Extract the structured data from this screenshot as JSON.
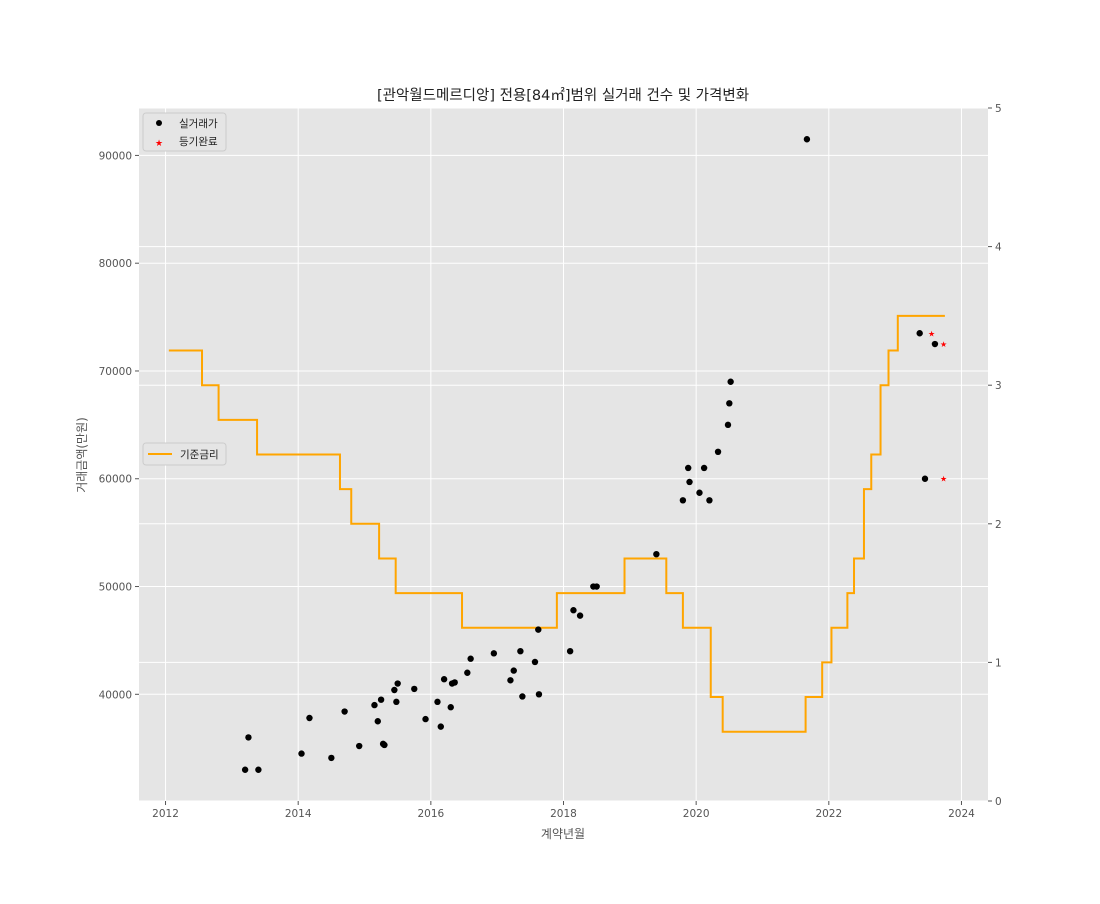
{
  "chart_data": {
    "type": "scatter",
    "title": "[관악월드메르디앙] 전용[84㎡]범위 실거래 건수 및 가격변화",
    "xlabel": "계약년월",
    "ylabel": "거래금액(만원)",
    "x_ticks": [
      "2012",
      "2014",
      "2016",
      "2018",
      "2020",
      "2022",
      "2024"
    ],
    "x_range": [
      2011.6,
      2024.4
    ],
    "y_ticks": [
      "40000",
      "50000",
      "60000",
      "70000",
      "80000",
      "90000"
    ],
    "y_range": [
      30100,
      94400
    ],
    "y2_ticks": [
      "0",
      "1",
      "2",
      "3",
      "4",
      "5"
    ],
    "y2_range": [
      0,
      5
    ],
    "grid": true,
    "legend_top": {
      "placement": "upper-left",
      "items": [
        "실거래가",
        "등기완료"
      ]
    },
    "legend_mid": {
      "placement": "center-left",
      "items": [
        "기준금리"
      ]
    },
    "colors": {
      "trade": "#000000",
      "registered": "#ff0000",
      "rate": "#ffa500",
      "plot_bg": "#e5e5e5",
      "grid": "#ffffff"
    },
    "series": [
      {
        "name": "실거래가",
        "marker": "circle",
        "points": [
          [
            2013.2,
            33000
          ],
          [
            2013.25,
            36000
          ],
          [
            2013.4,
            33000
          ],
          [
            2014.05,
            34500
          ],
          [
            2014.17,
            37800
          ],
          [
            2014.5,
            34100
          ],
          [
            2014.7,
            38400
          ],
          [
            2014.92,
            35200
          ],
          [
            2015.15,
            39000
          ],
          [
            2015.2,
            37500
          ],
          [
            2015.25,
            39500
          ],
          [
            2015.28,
            35400
          ],
          [
            2015.3,
            35300
          ],
          [
            2015.45,
            40400
          ],
          [
            2015.48,
            39300
          ],
          [
            2015.5,
            41000
          ],
          [
            2015.75,
            40500
          ],
          [
            2015.92,
            37700
          ],
          [
            2016.1,
            39300
          ],
          [
            2016.15,
            37000
          ],
          [
            2016.2,
            41400
          ],
          [
            2016.3,
            38800
          ],
          [
            2016.32,
            41000
          ],
          [
            2016.36,
            41100
          ],
          [
            2016.55,
            42000
          ],
          [
            2016.6,
            43300
          ],
          [
            2016.95,
            43800
          ],
          [
            2017.2,
            41300
          ],
          [
            2017.25,
            42200
          ],
          [
            2017.35,
            44000
          ],
          [
            2017.38,
            39800
          ],
          [
            2017.57,
            43000
          ],
          [
            2017.62,
            46000
          ],
          [
            2017.63,
            40000
          ],
          [
            2018.1,
            44000
          ],
          [
            2018.15,
            47800
          ],
          [
            2018.25,
            47300
          ],
          [
            2018.45,
            50000
          ],
          [
            2018.5,
            50000
          ],
          [
            2019.4,
            53000
          ],
          [
            2019.8,
            58000
          ],
          [
            2019.88,
            61000
          ],
          [
            2019.9,
            59700
          ],
          [
            2020.05,
            58700
          ],
          [
            2020.12,
            61000
          ],
          [
            2020.2,
            58000
          ],
          [
            2020.33,
            62500
          ],
          [
            2020.48,
            65000
          ],
          [
            2020.5,
            67000
          ],
          [
            2020.52,
            69000
          ],
          [
            2021.67,
            91500
          ],
          [
            2023.37,
            73500
          ],
          [
            2023.45,
            60000
          ],
          [
            2023.6,
            72500
          ]
        ]
      },
      {
        "name": "등기완료",
        "marker": "star",
        "points": [
          [
            2023.55,
            73500
          ],
          [
            2023.73,
            72500
          ],
          [
            2023.73,
            60000
          ]
        ]
      },
      {
        "name": "기준금리",
        "axis": "right",
        "step": true,
        "points": [
          [
            2012.05,
            3.25
          ],
          [
            2012.55,
            3.0
          ],
          [
            2012.8,
            2.75
          ],
          [
            2013.38,
            2.5
          ],
          [
            2014.63,
            2.25
          ],
          [
            2014.8,
            2.0
          ],
          [
            2015.22,
            1.75
          ],
          [
            2015.47,
            1.5
          ],
          [
            2016.47,
            1.25
          ],
          [
            2017.9,
            1.5
          ],
          [
            2018.92,
            1.75
          ],
          [
            2019.55,
            1.5
          ],
          [
            2019.8,
            1.25
          ],
          [
            2020.22,
            0.75
          ],
          [
            2020.4,
            0.5
          ],
          [
            2021.65,
            0.75
          ],
          [
            2021.9,
            1.0
          ],
          [
            2022.04,
            1.25
          ],
          [
            2022.28,
            1.5
          ],
          [
            2022.38,
            1.75
          ],
          [
            2022.53,
            2.25
          ],
          [
            2022.64,
            2.5
          ],
          [
            2022.78,
            3.0
          ],
          [
            2022.9,
            3.25
          ],
          [
            2023.04,
            3.5
          ],
          [
            2023.75,
            3.5
          ]
        ]
      }
    ]
  }
}
